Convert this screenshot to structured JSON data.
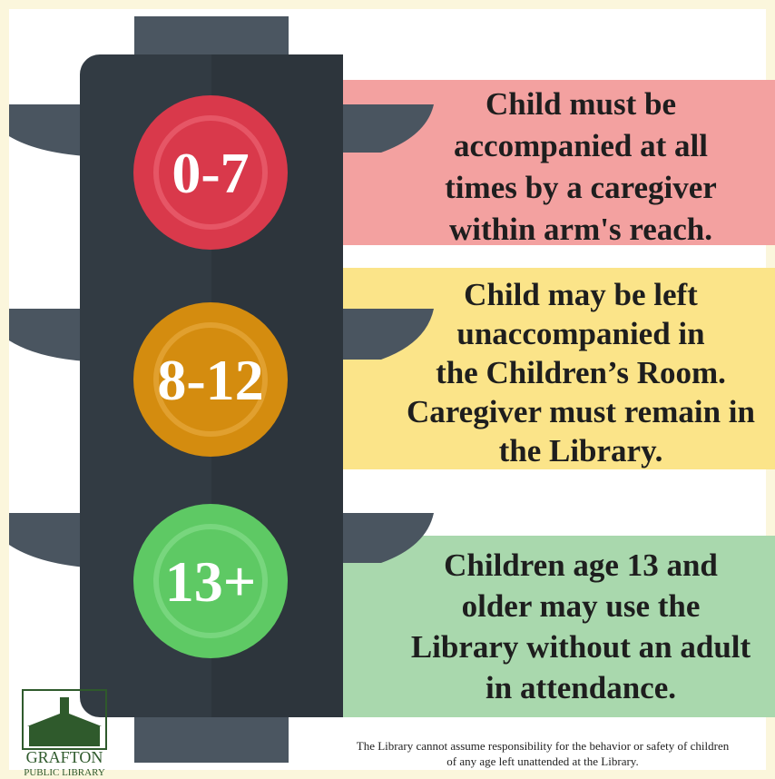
{
  "lights": [
    {
      "label": "0-7",
      "lines": [
        "Child must be",
        "accompanied at all",
        "times by a caregiver",
        "within arm's reach."
      ]
    },
    {
      "label": "8-12",
      "lines": [
        "Child may be left",
        "unaccompanied in",
        "the Children’s Room.",
        "Caregiver must remain in",
        "the Library."
      ]
    },
    {
      "label": "13+",
      "lines": [
        "Children age 13 and",
        "older may use the",
        "Library without an adult",
        "in attendance."
      ]
    }
  ],
  "footer": {
    "lines": [
      "The Library cannot assume responsibility for the behavior or safety of children",
      "of any age  left unattended at the Library."
    ]
  },
  "logo": {
    "name": "GRAFTON",
    "subtitle": "PUBLIC LIBRARY"
  }
}
